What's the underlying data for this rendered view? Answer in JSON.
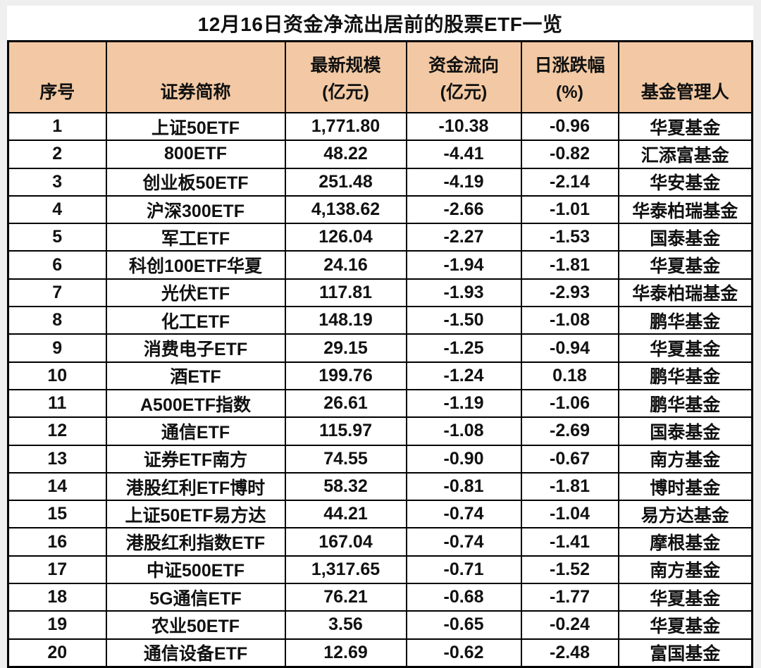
{
  "title": "12月16日资金净流出居前的股票ETF一览",
  "colors": {
    "page_background": "#efefef",
    "card_background": "#ffffff",
    "header_background": "#f2c9a4",
    "border": "#000000",
    "text": "#111111"
  },
  "table": {
    "header_lines": [
      [
        "序号"
      ],
      [
        "证券简称"
      ],
      [
        "最新规模",
        "(亿元)"
      ],
      [
        "资金流向",
        "(亿元)"
      ],
      [
        "日涨跌幅",
        "(%)"
      ],
      [
        "基金管理人"
      ]
    ]
  },
  "chart_data": {
    "type": "table",
    "title": "12月16日资金净流出居前的股票ETF一览",
    "columns": [
      "序号",
      "证券简称",
      "最新规模(亿元)",
      "资金流向(亿元)",
      "日涨跌幅(%)",
      "基金管理人"
    ],
    "rows": [
      [
        "1",
        "上证50ETF",
        "1,771.80",
        "-10.38",
        "-0.96",
        "华夏基金"
      ],
      [
        "2",
        "800ETF",
        "48.22",
        "-4.41",
        "-0.82",
        "汇添富基金"
      ],
      [
        "3",
        "创业板50ETF",
        "251.48",
        "-4.19",
        "-2.14",
        "华安基金"
      ],
      [
        "4",
        "沪深300ETF",
        "4,138.62",
        "-2.66",
        "-1.01",
        "华泰柏瑞基金"
      ],
      [
        "5",
        "军工ETF",
        "126.04",
        "-2.27",
        "-1.53",
        "国泰基金"
      ],
      [
        "6",
        "科创100ETF华夏",
        "24.16",
        "-1.94",
        "-1.81",
        "华夏基金"
      ],
      [
        "7",
        "光伏ETF",
        "117.81",
        "-1.93",
        "-2.93",
        "华泰柏瑞基金"
      ],
      [
        "8",
        "化工ETF",
        "148.19",
        "-1.50",
        "-1.08",
        "鹏华基金"
      ],
      [
        "9",
        "消费电子ETF",
        "29.15",
        "-1.25",
        "-0.94",
        "华夏基金"
      ],
      [
        "10",
        "酒ETF",
        "199.76",
        "-1.24",
        "0.18",
        "鹏华基金"
      ],
      [
        "11",
        "A500ETF指数",
        "26.61",
        "-1.19",
        "-1.06",
        "鹏华基金"
      ],
      [
        "12",
        "通信ETF",
        "115.97",
        "-1.08",
        "-2.69",
        "国泰基金"
      ],
      [
        "13",
        "证券ETF南方",
        "74.55",
        "-0.90",
        "-0.67",
        "南方基金"
      ],
      [
        "14",
        "港股红利ETF博时",
        "58.32",
        "-0.81",
        "-1.81",
        "博时基金"
      ],
      [
        "15",
        "上证50ETF易方达",
        "44.21",
        "-0.74",
        "-1.04",
        "易方达基金"
      ],
      [
        "16",
        "港股红利指数ETF",
        "167.04",
        "-0.74",
        "-1.41",
        "摩根基金"
      ],
      [
        "17",
        "中证500ETF",
        "1,317.65",
        "-0.71",
        "-1.52",
        "南方基金"
      ],
      [
        "18",
        "5G通信ETF",
        "76.21",
        "-0.68",
        "-1.77",
        "华夏基金"
      ],
      [
        "19",
        "农业50ETF",
        "3.56",
        "-0.65",
        "-0.24",
        "华夏基金"
      ],
      [
        "20",
        "通信设备ETF",
        "12.69",
        "-0.62",
        "-2.48",
        "富国基金"
      ]
    ]
  }
}
